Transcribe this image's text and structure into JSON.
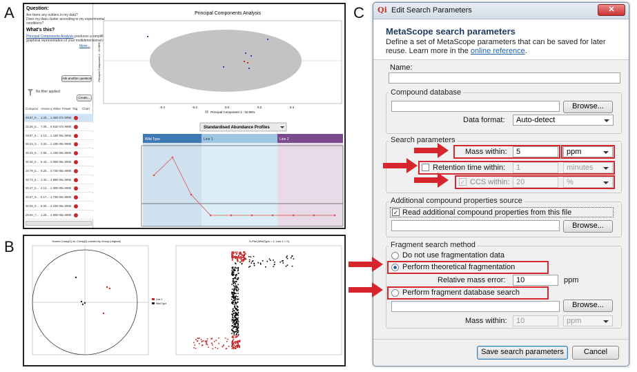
{
  "panel_labels": [
    "A",
    "B",
    "C"
  ],
  "pca_app": {
    "sidebar": {
      "question_heading": "Question:",
      "question_lines": [
        "Are there any outliers in my data?",
        "Does my data cluster according to my experimental",
        "conditions?"
      ],
      "whats_this": "What's this?",
      "link": "Principal Components Analysis",
      "description_lines": [
        " produces a simplified,",
        "graphical representation of your multidimensional data."
      ],
      "more": "More...",
      "ask_button": "Ask another question",
      "filter": "No filter applied",
      "create_button": "Create..."
    },
    "table": {
      "columns": [
        "Compour",
        "Anova",
        "q Value",
        "Power",
        "Tag",
        "Chart"
      ],
      "rows": [
        [
          "29.87_6...",
          "1.25...",
          "1.46E-07",
          "≥.9995"
        ],
        [
          "32.26_6...",
          "7.08...",
          "9.91E-07",
          "≥.9995"
        ],
        [
          "29.87_5...",
          "2.13...",
          "1.43E-06",
          "≥.9995"
        ],
        [
          "30.23_3...",
          "2.33...",
          "1.43E-06",
          "≥.9995"
        ],
        [
          "30.23_6...",
          "2.56...",
          "1.43E-06",
          "≥.9995"
        ],
        [
          "30.40_6...",
          "6.43...",
          "2.08E-06",
          "≥.9995"
        ],
        [
          "34.78_5...",
          "9.26...",
          "3.73E-06",
          "≥.9995"
        ],
        [
          "30.74_6...",
          "1.40...",
          "4.88E-06",
          "≥.9995"
        ],
        [
          "30.47_6...",
          "4.12...",
          "1.30E-05",
          "≥.9995"
        ],
        [
          "30.57_9...",
          "6.17...",
          "1.73E-05",
          "≥.9995"
        ],
        [
          "30.05_9...",
          "8.00...",
          "2.16E-05",
          "≥.9995"
        ],
        [
          "29.60_7...",
          "1.28...",
          "2.99E-05",
          "≥.9995"
        ]
      ]
    },
    "pca": {
      "title": "Principal Components Analysis",
      "x_label": "Principal Component 1 : 32.85%",
      "y_label": "Principal Component 2 : 20.68%",
      "x_ticks": [
        "-0.4",
        "-0.2",
        "0.0",
        "0.2",
        "0.4"
      ]
    },
    "profiles": {
      "dropdown": "Standardised Abundance Profiles",
      "groups": [
        "Wild Type",
        "Line 1",
        "Line 2"
      ]
    }
  },
  "multivariate": {
    "score_plot_title": "Scores Comp[1] vs. Comp[2] colored by Group (original)",
    "legend": [
      "Line 1",
      "Wild Type"
    ],
    "s_plot_title": "S-Plot (WildType = 1, Line 1 = 0)"
  },
  "dialog": {
    "window_title": "Edit Search Parameters",
    "header_title": "MetaScope search parameters",
    "header_text": "Define a set of MetaScope parameters that can be saved for later reuse. Learn more in the ",
    "header_link": "online reference",
    "header_end": ".",
    "name_label": "Name:",
    "compound_database": {
      "title": "Compound database",
      "browse": "Browse...",
      "format_label": "Data format:",
      "format_value": "Auto-detect"
    },
    "search_parameters": {
      "title": "Search parameters",
      "mass": {
        "label": "Mass within:",
        "value": "5",
        "unit": "ppm"
      },
      "retention": {
        "label": "Retention time within:",
        "value": "1",
        "unit": "minutes"
      },
      "ccs": {
        "label": "CCS within:",
        "value": "20",
        "unit": "%"
      }
    },
    "additional": {
      "title": "Additional compound properties source",
      "checkbox": "Read additional compound properties from this file",
      "browse": "Browse..."
    },
    "fragment": {
      "title": "Fragment search method",
      "option_none": "Do not use fragmentation data",
      "option_theoretical": "Perform theoretical fragmentation",
      "relative_label": "Relative mass error:",
      "relative_value": "10",
      "relative_unit": "ppm",
      "option_database": "Perform fragment database search",
      "browse": "Browse...",
      "mass_label": "Mass within:",
      "mass_value": "10",
      "mass_unit": "ppm"
    },
    "save_button": "Save search parameters",
    "cancel_button": "Cancel"
  }
}
